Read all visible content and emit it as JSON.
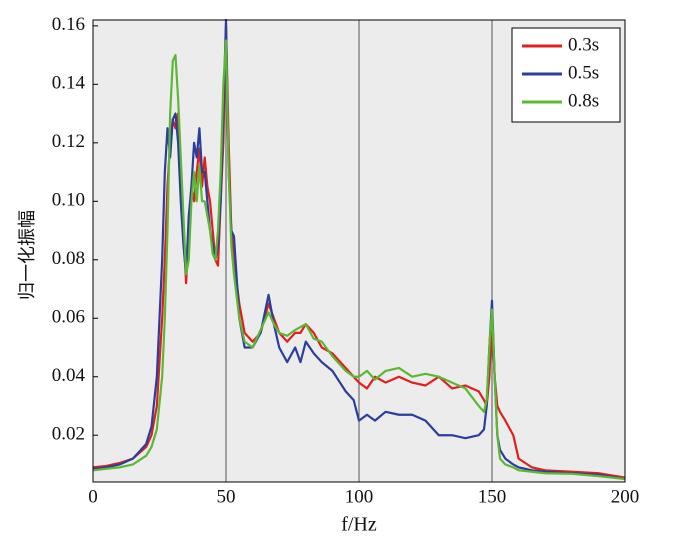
{
  "chart_data": {
    "type": "line",
    "y_label": "归一化振幅",
    "x_label": "f/Hz",
    "xlim": [
      0,
      200
    ],
    "xticks": [
      0,
      50,
      100,
      150,
      200
    ],
    "ylim": [
      0.004,
      0.162
    ],
    "yticks": [
      0.02,
      0.04,
      0.06,
      0.08,
      {
        "value": 0.1,
        "label": "0.10"
      },
      0.12,
      0.14,
      0.16
    ],
    "grid": "x",
    "legend": "upper right",
    "x": [
      0,
      5,
      10,
      15,
      20,
      22,
      24,
      26,
      27,
      28,
      29,
      30,
      31,
      32,
      33,
      34,
      35,
      36,
      37,
      38,
      39,
      40,
      41,
      42,
      43,
      44,
      45,
      46,
      47,
      48,
      49,
      50,
      51,
      52,
      53,
      55,
      57,
      60,
      63,
      66,
      68,
      70,
      73,
      76,
      78,
      80,
      83,
      86,
      90,
      95,
      98,
      100,
      103,
      106,
      110,
      115,
      120,
      125,
      130,
      135,
      140,
      145,
      147,
      148,
      149,
      150,
      151,
      152,
      153,
      155,
      158,
      160,
      165,
      170,
      180,
      190,
      200
    ],
    "series": [
      {
        "name": "0.3s",
        "color": "#e0201c",
        "values": [
          0.009,
          0.0095,
          0.0105,
          0.012,
          0.016,
          0.02,
          0.03,
          0.06,
          0.08,
          0.105,
          0.12,
          0.128,
          0.125,
          0.13,
          0.11,
          0.09,
          0.072,
          0.09,
          0.105,
          0.1,
          0.11,
          0.118,
          0.105,
          0.115,
          0.105,
          0.1,
          0.09,
          0.08,
          0.078,
          0.1,
          0.12,
          0.16,
          0.12,
          0.09,
          0.08,
          0.065,
          0.055,
          0.052,
          0.055,
          0.065,
          0.06,
          0.055,
          0.052,
          0.055,
          0.055,
          0.058,
          0.055,
          0.05,
          0.048,
          0.043,
          0.04,
          0.038,
          0.036,
          0.04,
          0.038,
          0.04,
          0.038,
          0.037,
          0.04,
          0.036,
          0.037,
          0.035,
          0.032,
          0.03,
          0.04,
          0.06,
          0.04,
          0.03,
          0.028,
          0.025,
          0.02,
          0.012,
          0.009,
          0.008,
          0.0075,
          0.007,
          0.0055
        ]
      },
      {
        "name": "0.5s",
        "color": "#2b3e9c",
        "values": [
          0.0085,
          0.009,
          0.01,
          0.012,
          0.017,
          0.023,
          0.04,
          0.08,
          0.11,
          0.125,
          0.115,
          0.128,
          0.13,
          0.12,
          0.1,
          0.085,
          0.075,
          0.095,
          0.105,
          0.12,
          0.115,
          0.125,
          0.11,
          0.11,
          0.1,
          0.09,
          0.085,
          0.08,
          0.085,
          0.1,
          0.13,
          0.162,
          0.11,
          0.09,
          0.088,
          0.06,
          0.05,
          0.05,
          0.055,
          0.068,
          0.058,
          0.05,
          0.045,
          0.05,
          0.045,
          0.052,
          0.048,
          0.045,
          0.042,
          0.035,
          0.032,
          0.025,
          0.027,
          0.025,
          0.028,
          0.027,
          0.027,
          0.025,
          0.02,
          0.02,
          0.019,
          0.02,
          0.022,
          0.03,
          0.05,
          0.066,
          0.04,
          0.02,
          0.015,
          0.012,
          0.01,
          0.009,
          0.008,
          0.0075,
          0.007,
          0.0065,
          0.005
        ]
      },
      {
        "name": "0.8s",
        "color": "#5cb833",
        "values": [
          0.008,
          0.0085,
          0.009,
          0.01,
          0.013,
          0.016,
          0.022,
          0.04,
          0.06,
          0.09,
          0.13,
          0.148,
          0.15,
          0.135,
          0.115,
          0.095,
          0.075,
          0.08,
          0.1,
          0.11,
          0.1,
          0.112,
          0.1,
          0.1,
          0.095,
          0.09,
          0.082,
          0.08,
          0.09,
          0.11,
          0.14,
          0.155,
          0.11,
          0.085,
          0.075,
          0.06,
          0.052,
          0.05,
          0.056,
          0.062,
          0.058,
          0.055,
          0.054,
          0.056,
          0.057,
          0.058,
          0.053,
          0.052,
          0.047,
          0.042,
          0.04,
          0.04,
          0.042,
          0.039,
          0.042,
          0.043,
          0.04,
          0.041,
          0.04,
          0.038,
          0.036,
          0.03,
          0.028,
          0.032,
          0.05,
          0.063,
          0.04,
          0.02,
          0.012,
          0.01,
          0.009,
          0.008,
          0.0075,
          0.007,
          0.0068,
          0.006,
          0.005
        ]
      }
    ]
  }
}
